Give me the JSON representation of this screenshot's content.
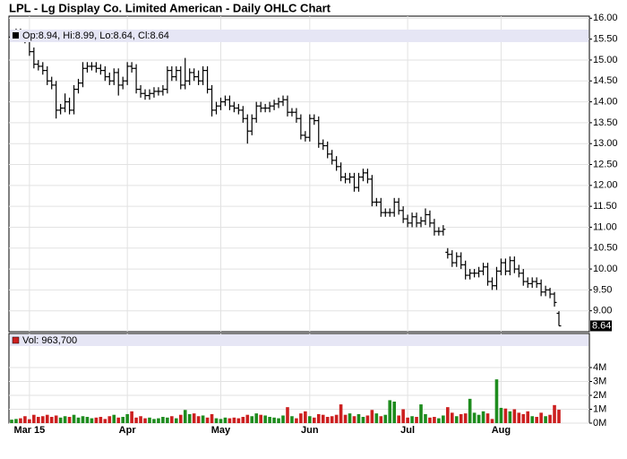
{
  "chart_data": [
    {
      "type": "ohlc",
      "title": "LPL - Lg Display Co. Limited American - Daily OHLC Chart",
      "legend": "Op:8.94, Hi:8.99, Lo:8.64, Cl:8.64",
      "last_label": "8.64",
      "color": "#000000",
      "grid": true,
      "categories": [
        null,
        null,
        null,
        null,
        "Mar 15",
        null,
        null,
        null,
        null,
        null,
        null,
        null,
        null,
        null,
        null,
        null,
        null,
        null,
        null,
        null,
        null,
        null,
        null,
        null,
        null,
        null,
        "Apr",
        null,
        null,
        null,
        null,
        null,
        null,
        null,
        null,
        null,
        null,
        null,
        null,
        null,
        null,
        null,
        null,
        null,
        null,
        null,
        null,
        "May",
        null,
        null,
        null,
        null,
        null,
        null,
        null,
        null,
        null,
        null,
        null,
        null,
        null,
        null,
        null,
        null,
        null,
        null,
        null,
        "Jun",
        null,
        null,
        null,
        null,
        null,
        null,
        null,
        null,
        null,
        null,
        null,
        null,
        null,
        null,
        null,
        null,
        null,
        null,
        null,
        null,
        null,
        "Jul",
        null,
        null,
        null,
        null,
        null,
        null,
        null,
        null,
        null,
        null,
        null,
        null,
        null,
        null,
        null,
        null,
        null,
        null,
        null,
        null,
        "Aug",
        null,
        null,
        null,
        null,
        null,
        null,
        null,
        null,
        null,
        null,
        null,
        null,
        null
      ],
      "open": [
        15.55,
        15.6,
        15.65,
        15.6,
        15.5,
        15.2,
        14.9,
        14.85,
        14.75,
        14.5,
        14.4,
        13.8,
        13.85,
        14.0,
        13.8,
        14.3,
        14.45,
        14.8,
        14.85,
        14.85,
        14.8,
        14.75,
        14.6,
        14.5,
        14.7,
        14.4,
        14.5,
        14.85,
        14.8,
        14.3,
        14.2,
        14.15,
        14.2,
        14.25,
        14.25,
        14.3,
        14.75,
        14.6,
        14.75,
        14.4,
        14.5,
        14.7,
        14.6,
        14.5,
        14.75,
        14.3,
        13.8,
        13.9,
        14.0,
        14.05,
        13.9,
        13.85,
        13.8,
        13.6,
        13.3,
        13.6,
        13.9,
        13.85,
        13.85,
        13.9,
        13.95,
        14.0,
        14.05,
        13.75,
        13.75,
        13.6,
        13.2,
        13.15,
        13.6,
        13.55,
        13.0,
        12.95,
        12.75,
        12.6,
        12.45,
        12.2,
        12.15,
        12.2,
        11.95,
        12.2,
        12.3,
        12.15,
        11.6,
        11.6,
        11.35,
        11.35,
        11.35,
        11.6,
        11.4,
        11.2,
        11.1,
        11.25,
        11.1,
        11.15,
        11.3,
        11.1,
        10.9,
        10.9,
        10.4,
        10.35,
        10.15,
        10.3,
        10.1,
        9.85,
        9.9,
        9.9,
        9.95,
        10.05,
        9.7,
        9.6,
        9.95,
        10.15,
        9.95,
        10.2,
        10.0,
        9.9,
        9.7,
        9.65,
        9.7,
        9.65,
        9.45,
        9.5,
        9.4,
        8.94
      ],
      "high": [
        15.7,
        15.75,
        15.75,
        15.7,
        15.6,
        15.3,
        15.0,
        14.95,
        14.85,
        14.6,
        14.5,
        13.95,
        14.2,
        14.1,
        14.4,
        14.55,
        14.95,
        14.95,
        14.95,
        14.95,
        14.9,
        14.85,
        14.7,
        14.8,
        14.8,
        14.6,
        14.95,
        14.95,
        14.9,
        14.4,
        14.3,
        14.3,
        14.35,
        14.35,
        14.4,
        14.85,
        14.85,
        14.85,
        14.85,
        15.05,
        14.8,
        14.8,
        14.75,
        14.85,
        14.85,
        14.4,
        14.0,
        14.1,
        14.15,
        14.15,
        14.0,
        13.95,
        13.9,
        13.7,
        13.7,
        14.0,
        14.0,
        13.95,
        14.0,
        14.05,
        14.1,
        14.15,
        14.15,
        13.85,
        13.85,
        13.7,
        13.3,
        13.7,
        13.7,
        13.65,
        13.1,
        13.05,
        12.85,
        12.7,
        12.55,
        12.3,
        12.3,
        12.3,
        12.3,
        12.4,
        12.4,
        12.25,
        11.7,
        11.7,
        11.45,
        11.45,
        11.7,
        11.7,
        11.5,
        11.3,
        11.35,
        11.35,
        11.25,
        11.45,
        11.4,
        11.2,
        11.0,
        11.05,
        10.5,
        10.45,
        10.4,
        10.4,
        10.2,
        10.0,
        10.0,
        10.05,
        10.15,
        10.15,
        9.8,
        10.05,
        10.25,
        10.25,
        10.3,
        10.3,
        10.1,
        10.0,
        9.8,
        9.8,
        9.8,
        9.75,
        9.6,
        9.55,
        9.45,
        8.99
      ],
      "low": [
        15.45,
        15.5,
        15.5,
        15.4,
        15.1,
        14.8,
        14.75,
        14.65,
        14.4,
        14.3,
        13.6,
        13.7,
        13.75,
        13.7,
        13.7,
        14.2,
        14.35,
        14.7,
        14.75,
        14.7,
        14.65,
        14.5,
        14.4,
        14.4,
        14.15,
        14.3,
        14.4,
        14.7,
        14.2,
        14.1,
        14.05,
        14.05,
        14.1,
        14.15,
        14.15,
        14.2,
        14.5,
        14.5,
        14.3,
        14.3,
        14.4,
        14.5,
        14.4,
        14.4,
        14.2,
        13.65,
        13.7,
        13.8,
        13.9,
        13.8,
        13.75,
        13.7,
        13.5,
        13.0,
        13.2,
        13.5,
        13.75,
        13.75,
        13.75,
        13.8,
        13.85,
        13.9,
        13.65,
        13.65,
        13.5,
        13.1,
        13.05,
        13.05,
        13.45,
        12.9,
        12.85,
        12.65,
        12.5,
        12.35,
        12.1,
        12.05,
        12.05,
        11.85,
        11.85,
        12.1,
        12.05,
        11.5,
        11.5,
        11.25,
        11.25,
        11.25,
        11.25,
        11.3,
        11.1,
        11.0,
        11.0,
        11.0,
        11.0,
        11.05,
        11.0,
        10.8,
        10.8,
        10.8,
        10.25,
        10.05,
        10.05,
        10.0,
        9.75,
        9.75,
        9.8,
        9.8,
        9.85,
        9.6,
        9.5,
        9.5,
        9.85,
        9.85,
        9.85,
        9.9,
        9.8,
        9.6,
        9.55,
        9.55,
        9.55,
        9.35,
        9.35,
        9.3,
        9.1,
        8.64
      ],
      "close": [
        15.6,
        15.65,
        15.6,
        15.5,
        15.2,
        14.9,
        14.85,
        14.75,
        14.5,
        14.4,
        13.8,
        13.85,
        14.0,
        13.8,
        14.3,
        14.45,
        14.8,
        14.85,
        14.85,
        14.8,
        14.75,
        14.6,
        14.5,
        14.7,
        14.4,
        14.5,
        14.85,
        14.8,
        14.3,
        14.2,
        14.15,
        14.2,
        14.25,
        14.25,
        14.3,
        14.75,
        14.6,
        14.75,
        14.4,
        14.5,
        14.7,
        14.6,
        14.5,
        14.75,
        14.3,
        13.8,
        13.9,
        14.0,
        14.05,
        13.9,
        13.85,
        13.8,
        13.6,
        13.3,
        13.6,
        13.9,
        13.85,
        13.85,
        13.9,
        13.95,
        14.0,
        14.05,
        13.75,
        13.75,
        13.6,
        13.2,
        13.15,
        13.6,
        13.55,
        13.0,
        12.95,
        12.75,
        12.6,
        12.45,
        12.2,
        12.15,
        12.2,
        11.95,
        12.2,
        12.3,
        12.15,
        11.6,
        11.6,
        11.35,
        11.35,
        11.35,
        11.6,
        11.4,
        11.2,
        11.1,
        11.25,
        11.1,
        11.15,
        11.3,
        11.1,
        10.9,
        10.9,
        10.95,
        10.35,
        10.15,
        10.3,
        10.1,
        9.85,
        9.9,
        9.9,
        9.95,
        10.05,
        9.7,
        9.6,
        9.95,
        10.15,
        9.95,
        10.2,
        10.0,
        9.9,
        9.7,
        9.65,
        9.7,
        9.65,
        9.45,
        9.5,
        9.4,
        9.2,
        8.64
      ],
      "ylim": [
        8.5,
        16.05
      ],
      "yticks": [
        {
          "value": 9,
          "label": "9.00"
        },
        {
          "value": 9.5,
          "label": "9.50"
        },
        {
          "value": 10,
          "label": "10.00"
        },
        {
          "value": 10.5,
          "label": "10.50"
        },
        {
          "value": 11,
          "label": "11.00"
        },
        {
          "value": 11.5,
          "label": "11.50"
        },
        {
          "value": 12,
          "label": "12.00"
        },
        {
          "value": 12.5,
          "label": "12.50"
        },
        {
          "value": 13,
          "label": "13.00"
        },
        {
          "value": 13.5,
          "label": "13.50"
        },
        {
          "value": 14,
          "label": "14.00"
        },
        {
          "value": 14.5,
          "label": "14.50"
        },
        {
          "value": 15,
          "label": "15.00"
        },
        {
          "value": 15.5,
          "label": "15.50"
        },
        {
          "value": 16,
          "label": "16.00"
        }
      ]
    },
    {
      "type": "bar",
      "legend": "Vol: 963,700",
      "up_color": "#1e8c1e",
      "down_color": "#cc1f1f",
      "values": [
        250000,
        300000,
        350000,
        500000,
        280000,
        600000,
        450000,
        500000,
        600000,
        450000,
        550000,
        400000,
        500000,
        450000,
        600000,
        400000,
        500000,
        450000,
        350000,
        400000,
        450000,
        300000,
        500000,
        600000,
        400000,
        450000,
        650000,
        850000,
        400000,
        500000,
        350000,
        400000,
        300000,
        350000,
        450000,
        400000,
        500000,
        350000,
        600000,
        950000,
        650000,
        700000,
        500000,
        550000,
        400000,
        650000,
        350000,
        300000,
        400000,
        350000,
        400000,
        350000,
        450000,
        600000,
        500000,
        700000,
        600000,
        550000,
        450000,
        400000,
        350000,
        550000,
        1150000,
        500000,
        350000,
        700000,
        850000,
        500000,
        400000,
        650000,
        600000,
        450000,
        500000,
        600000,
        1350000,
        600000,
        700000,
        500000,
        650000,
        450000,
        550000,
        950000,
        700000,
        500000,
        600000,
        1650000,
        1550000,
        550000,
        1000000,
        400000,
        500000,
        450000,
        1350000,
        650000,
        400000,
        450000,
        350000,
        550000,
        1150000,
        750000,
        500000,
        650000,
        700000,
        1750000,
        750000,
        600000,
        850000,
        700000,
        300000,
        3150000,
        1100000,
        1050000,
        850000,
        1000000,
        750000,
        650000,
        850000,
        500000,
        450000,
        750000,
        500000,
        600000,
        1300000,
        963700
      ],
      "ylim": [
        0,
        6450000
      ],
      "yticks": [
        {
          "value": 0,
          "label": "0M"
        },
        {
          "value": 1000000,
          "label": "1M"
        },
        {
          "value": 2000000,
          "label": "2M"
        },
        {
          "value": 3000000,
          "label": "3M"
        },
        {
          "value": 4000000,
          "label": "4M"
        }
      ]
    }
  ]
}
